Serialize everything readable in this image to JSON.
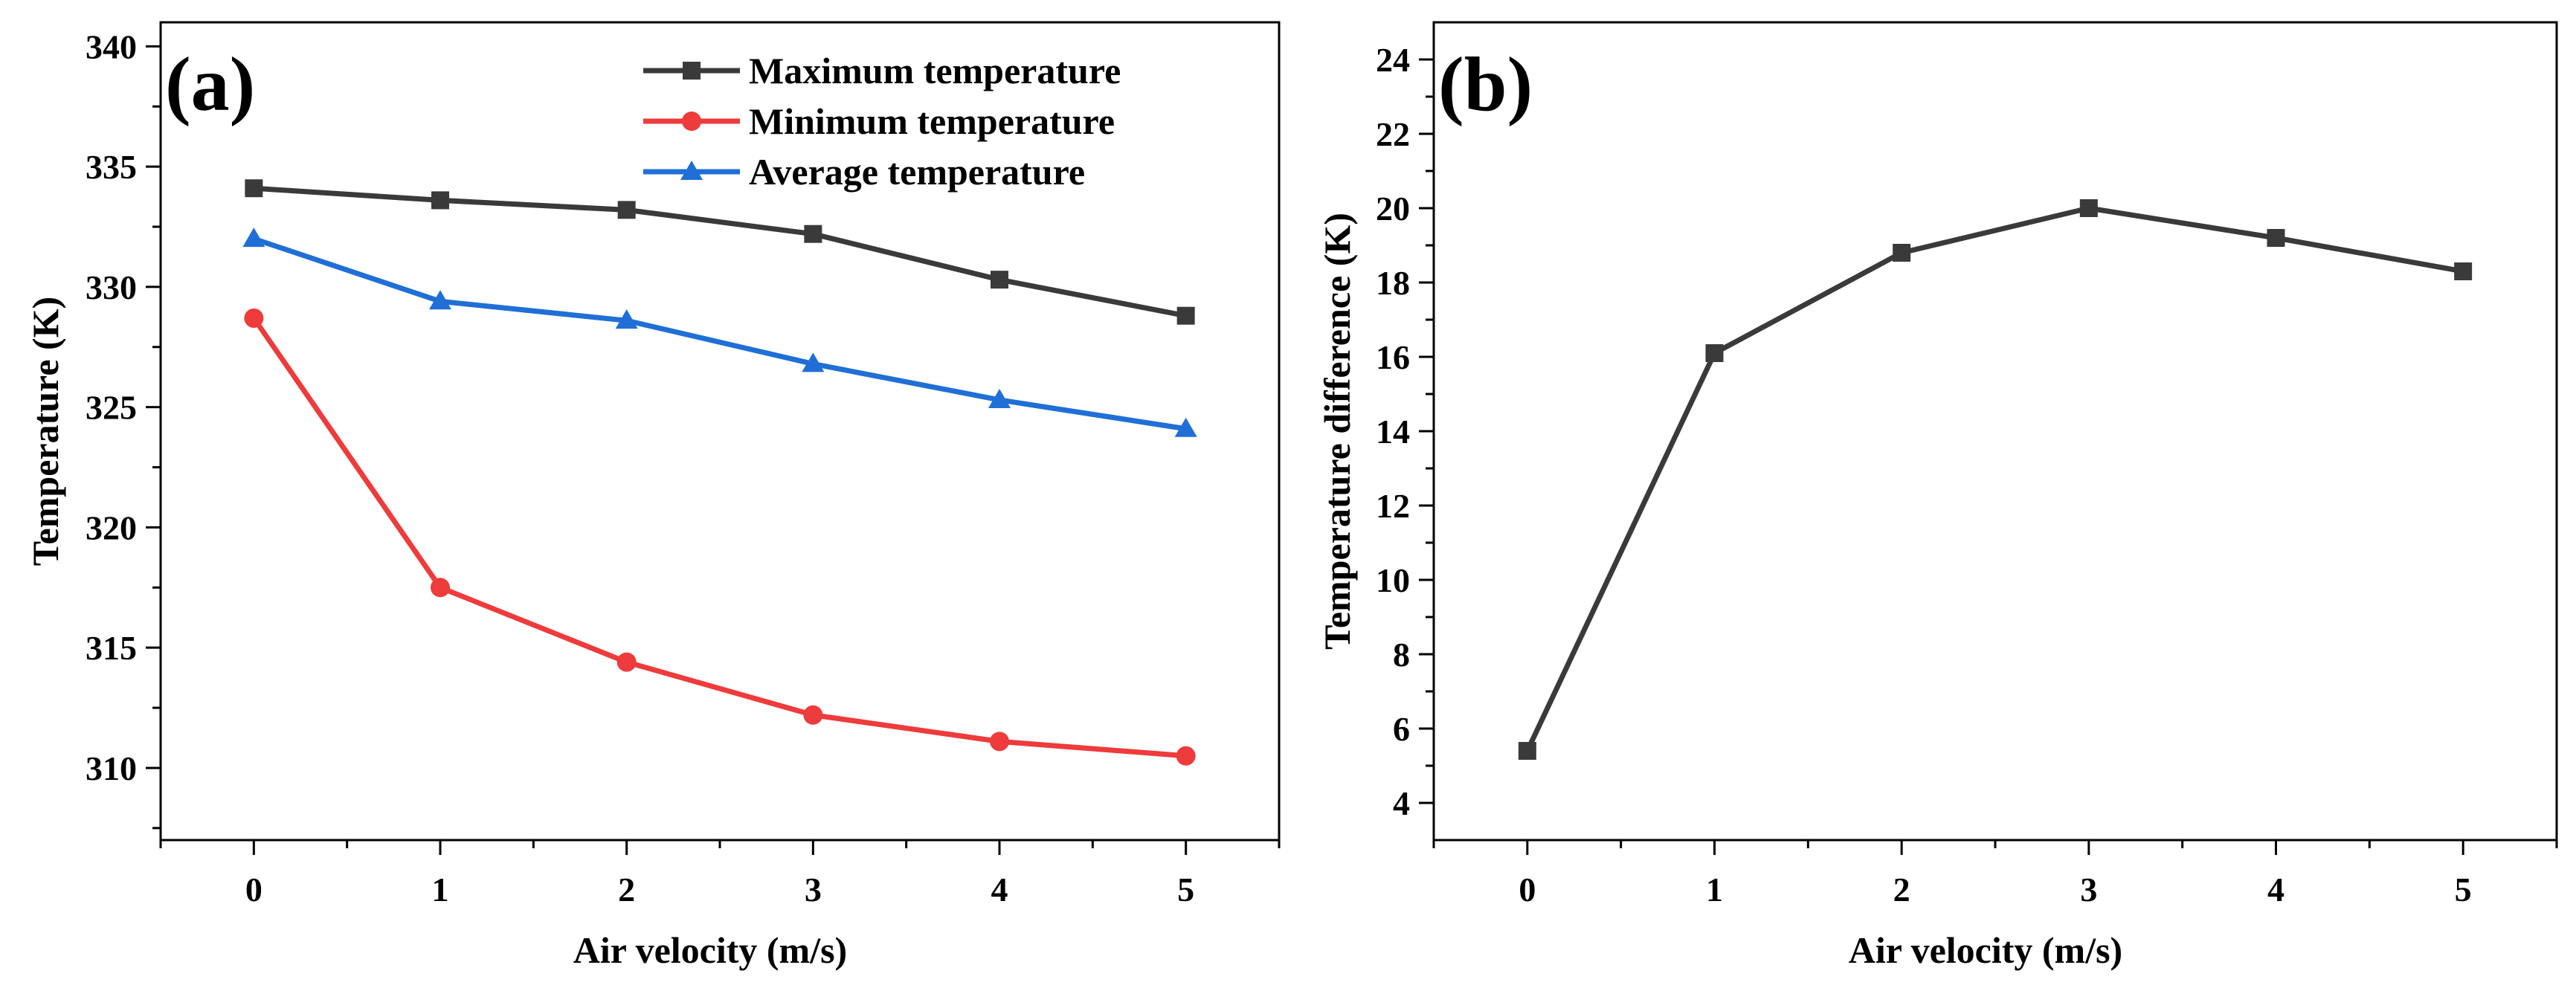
{
  "chart_data": [
    {
      "type": "line",
      "panel_label": "(a)",
      "xlabel": "Air velocity (m/s)",
      "ylabel": "Temperature (K)",
      "xlim": [
        -0.5,
        5.5
      ],
      "ylim": [
        307,
        341
      ],
      "x": [
        0,
        1,
        2,
        3,
        4,
        5
      ],
      "xticks": [
        0,
        1,
        2,
        3,
        4,
        5
      ],
      "yticks": [
        310,
        315,
        320,
        325,
        330,
        335,
        340
      ],
      "legend_position": "top-right",
      "series": [
        {
          "name": "Maximum temperature",
          "marker": "square",
          "color": "#3a3a3a",
          "values": [
            334.1,
            333.6,
            333.2,
            332.2,
            330.3,
            328.8
          ]
        },
        {
          "name": "Minimum temperature",
          "marker": "circle",
          "color": "#ee3b3b",
          "values": [
            328.7,
            317.5,
            314.4,
            312.2,
            311.1,
            310.5
          ]
        },
        {
          "name": "Average temperature",
          "marker": "triangle",
          "color": "#1f6fd6",
          "values": [
            332.0,
            329.4,
            328.6,
            326.8,
            325.3,
            324.1
          ]
        }
      ]
    },
    {
      "type": "line",
      "panel_label": "(b)",
      "xlabel": "Air velocity (m/s)",
      "ylabel": "Temperature difference (K)",
      "xlim": [
        -0.5,
        5.5
      ],
      "ylim": [
        3,
        25
      ],
      "x": [
        0,
        1,
        2,
        3,
        4,
        5
      ],
      "xticks": [
        0,
        1,
        2,
        3,
        4,
        5
      ],
      "yticks": [
        4,
        6,
        8,
        10,
        12,
        14,
        16,
        18,
        20,
        22,
        24
      ],
      "series": [
        {
          "name": "Temperature difference",
          "marker": "square",
          "color": "#3a3a3a",
          "values": [
            5.4,
            16.1,
            18.8,
            20.0,
            19.2,
            18.3
          ]
        }
      ]
    }
  ]
}
